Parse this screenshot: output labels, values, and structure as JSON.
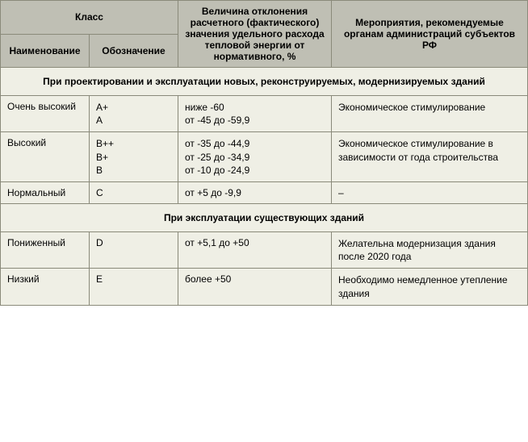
{
  "colors": {
    "header_bg": "#bfbfb4",
    "cell_bg": "#efefe5",
    "border": "#8a8a7a",
    "text": "#000000"
  },
  "headers": {
    "class_group": "Класс",
    "name": "Наименование",
    "sign": "Обозначение",
    "deviation": "Величина отклонения расчетного (фактического) значения удельного расхода тепловой энергии от нормативного, %",
    "actions": "Мероприятия, рекомендуемые органам администраций субъектов РФ"
  },
  "sections": {
    "s1": "При проектировании и эксплуатации новых, реконструируемых, модернизируемых зданий",
    "s2": "При эксплуатации существующих зданий"
  },
  "rows": {
    "r1": {
      "name": "Очень высокий",
      "sign": "А+\nА",
      "deviation": "ниже -60\nот -45 до -59,9",
      "actions": "Экономическое стимулирование"
    },
    "r2": {
      "name": "Высокий",
      "sign": "В++\nВ+\nВ",
      "deviation": "от -35 до -44,9\nот -25 до -34,9\nот -10 до -24,9",
      "actions": "Экономическое стимулирование в зависимости от года строительства"
    },
    "r3": {
      "name": "Нормальный",
      "sign": "С",
      "deviation": "от +5 до -9,9",
      "actions": "–"
    },
    "r4": {
      "name": "Пониженный",
      "sign": "D",
      "deviation": "от +5,1 до +50",
      "actions": "Желательна модернизация здания после 2020 года"
    },
    "r5": {
      "name": "Низкий",
      "sign": "Е",
      "deviation": "более +50",
      "actions": "Необходимо немедленное утепление здания"
    }
  }
}
